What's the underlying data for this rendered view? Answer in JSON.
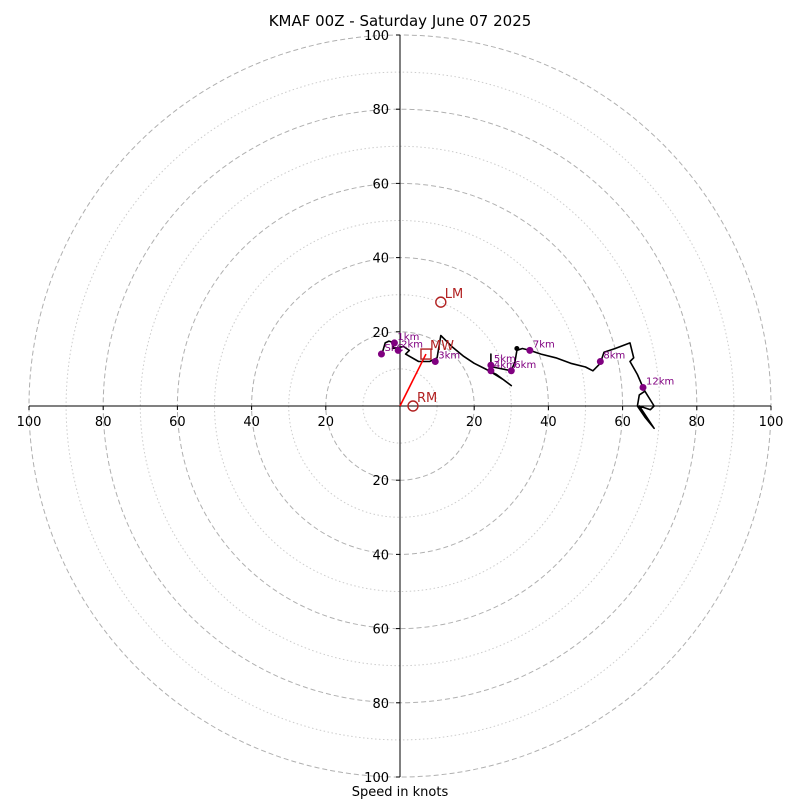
{
  "chart_data": {
    "type": "scatter",
    "title": "KMAF 00Z - Saturday June 07 2025",
    "xlabel": "Speed in knots",
    "ylabel": "",
    "xlim": [
      -100,
      100
    ],
    "ylim": [
      -100,
      100
    ],
    "grid": true,
    "ring_values_dashed": [
      20,
      40,
      60,
      80,
      100
    ],
    "ring_values_dotted": [
      10,
      30,
      50,
      70,
      90
    ],
    "x_tick_labels": [
      "100",
      "80",
      "60",
      "40",
      "20",
      "20",
      "40",
      "60",
      "80",
      "100"
    ],
    "x_tick_values": [
      -100,
      -80,
      -60,
      -40,
      -20,
      20,
      40,
      60,
      80,
      100
    ],
    "y_tick_labels": [
      "100",
      "80",
      "60",
      "40",
      "20",
      "20",
      "40",
      "60",
      "80",
      "100"
    ],
    "y_tick_values": [
      100,
      80,
      60,
      40,
      20,
      -20,
      -40,
      -60,
      -80,
      -100
    ],
    "hodograph_trace": [
      [
        -5,
        13.5
      ],
      [
        -4,
        17
      ],
      [
        -3,
        17.5
      ],
      [
        -1.5,
        17
      ],
      [
        -2,
        15.5
      ],
      [
        1,
        16
      ],
      [
        2.5,
        15
      ],
      [
        1.5,
        14
      ],
      [
        5,
        12
      ],
      [
        8,
        12
      ],
      [
        10,
        13
      ],
      [
        11,
        19
      ],
      [
        14,
        16
      ],
      [
        17,
        13.5
      ],
      [
        20,
        11.5
      ],
      [
        23,
        10
      ],
      [
        24,
        9.5
      ],
      [
        28,
        7
      ],
      [
        30,
        5.5
      ],
      [
        26,
        8.5
      ],
      [
        24,
        9.5
      ],
      [
        24.5,
        11
      ],
      [
        24.5,
        14
      ],
      [
        24.5,
        11
      ],
      [
        25,
        10.5
      ],
      [
        30,
        9.5
      ],
      [
        31,
        12
      ],
      [
        31.5,
        15
      ],
      [
        33,
        15.5
      ],
      [
        35,
        15
      ],
      [
        38,
        14
      ],
      [
        42,
        13
      ],
      [
        46,
        11.5
      ],
      [
        50,
        10.5
      ],
      [
        52,
        9.5
      ],
      [
        52.5,
        10
      ],
      [
        54,
        11.5
      ],
      [
        55,
        14.5
      ],
      [
        58,
        15.5
      ],
      [
        62,
        17
      ],
      [
        63,
        13
      ],
      [
        62,
        12
      ],
      [
        64,
        8.5
      ],
      [
        65.5,
        5
      ],
      [
        66,
        4
      ],
      [
        68.5,
        0
      ],
      [
        67.5,
        -1
      ],
      [
        64.5,
        0
      ],
      [
        68.5,
        -6
      ],
      [
        66,
        -3
      ],
      [
        64,
        0
      ],
      [
        64.5,
        3
      ],
      [
        66,
        4
      ]
    ],
    "height_markers": [
      {
        "label": "1km",
        "x": -1.5,
        "y": 17
      },
      {
        "label": "2km",
        "x": -0.5,
        "y": 15
      },
      {
        "label": "3km",
        "x": 9.5,
        "y": 12
      },
      {
        "label": "4km",
        "x": 24.5,
        "y": 9.5
      },
      {
        "label": "5km",
        "x": 24.5,
        "y": 11
      },
      {
        "label": "6km",
        "x": 30,
        "y": 9.5
      },
      {
        "label": "7km",
        "x": 35,
        "y": 15
      },
      {
        "label": "8km",
        "x": 54,
        "y": 12
      },
      {
        "label": "12km",
        "x": 65.5,
        "y": 5
      },
      {
        "label": "SFC",
        "x": -5,
        "y": 14
      }
    ],
    "extra_point": {
      "x": 31.5,
      "y": 15.5
    },
    "storm_motion": [
      {
        "label": "LM",
        "x": 11,
        "y": 28
      },
      {
        "label": "MW",
        "x": 7,
        "y": 14
      },
      {
        "label": "RM",
        "x": 3.5,
        "y": 0
      }
    ],
    "shear_vector": {
      "from": [
        0,
        0
      ],
      "to": [
        7,
        14
      ]
    },
    "colors": {
      "trace": "#000000",
      "markers": "#800080",
      "storm_motion": "#b22222",
      "shear": "#ff0000",
      "grid_ring": "#b0b0b0",
      "axis": "#000000"
    }
  }
}
